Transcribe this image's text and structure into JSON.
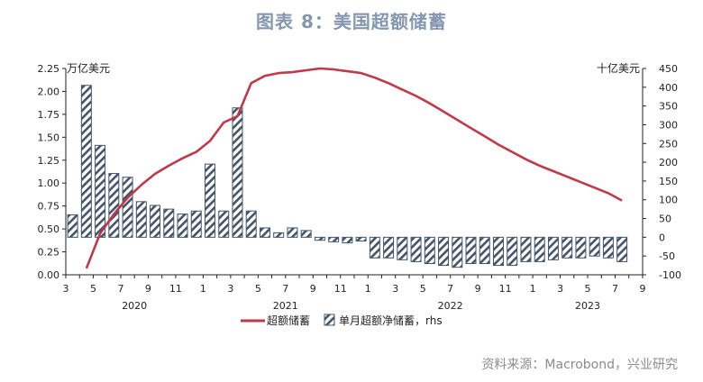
{
  "title": "图表 8：美国超额储蓄",
  "source": "资料来源：Macrobond，兴业研究",
  "chart_data": {
    "type": "bar+line",
    "left_unit": "万亿美元",
    "right_unit": "十亿美元",
    "x_tick_labels": [
      "3",
      "5",
      "7",
      "9",
      "11",
      "1",
      "3",
      "5",
      "7",
      "9",
      "11",
      "1",
      "3",
      "5",
      "7",
      "9",
      "11",
      "1",
      "3",
      "5",
      "7",
      "9"
    ],
    "year_labels": [
      "2020",
      "2021",
      "2022",
      "2023"
    ],
    "left_axis": {
      "min": 0.0,
      "max": 2.25,
      "step": 0.25,
      "tick_labels": [
        "0.00",
        "0.25",
        "0.50",
        "0.75",
        "1.00",
        "1.25",
        "1.50",
        "1.75",
        "2.00",
        "2.25"
      ]
    },
    "right_axis": {
      "min": -100,
      "max": 450,
      "step": 50,
      "tick_labels": [
        "-100",
        "-50",
        "0",
        "50",
        "100",
        "150",
        "200",
        "250",
        "300",
        "350",
        "400",
        "450"
      ]
    },
    "months": [
      "2020-03",
      "2020-04",
      "2020-05",
      "2020-06",
      "2020-07",
      "2020-08",
      "2020-09",
      "2020-10",
      "2020-11",
      "2020-12",
      "2021-01",
      "2021-02",
      "2021-03",
      "2021-04",
      "2021-05",
      "2021-06",
      "2021-07",
      "2021-08",
      "2021-09",
      "2021-10",
      "2021-11",
      "2021-12",
      "2022-01",
      "2022-02",
      "2022-03",
      "2022-04",
      "2022-05",
      "2022-06",
      "2022-07",
      "2022-08",
      "2022-09",
      "2022-10",
      "2022-11",
      "2022-12",
      "2023-01",
      "2023-02",
      "2023-03",
      "2023-04",
      "2023-05",
      "2023-06",
      "2023-07",
      "2023-08"
    ],
    "series": [
      {
        "name": "超额储蓄",
        "axis": "left",
        "type": "line",
        "color": "#c0394b",
        "values": [
          null,
          0.07,
          0.45,
          0.66,
          0.84,
          0.98,
          1.1,
          1.19,
          1.27,
          1.34,
          1.46,
          1.66,
          1.73,
          2.09,
          2.17,
          2.2,
          2.21,
          2.23,
          2.25,
          2.24,
          2.22,
          2.2,
          2.15,
          2.09,
          2.02,
          1.95,
          1.87,
          1.78,
          1.69,
          1.6,
          1.51,
          1.42,
          1.34,
          1.26,
          1.19,
          1.13,
          1.07,
          1.01,
          0.95,
          0.89,
          0.81,
          null
        ]
      },
      {
        "name": "单月超额净储蓄，rhs",
        "axis": "right",
        "type": "bar",
        "color": "#44546a",
        "values": [
          60,
          405,
          245,
          170,
          160,
          95,
          85,
          75,
          62,
          70,
          195,
          70,
          345,
          70,
          25,
          12,
          25,
          18,
          -8,
          -12,
          -15,
          -10,
          -55,
          -55,
          -60,
          -65,
          -70,
          -75,
          -80,
          -70,
          -70,
          -75,
          -75,
          -65,
          -65,
          -60,
          -55,
          -55,
          -50,
          -55,
          -65,
          null
        ]
      }
    ],
    "grid": false,
    "legend_position": "bottom"
  }
}
